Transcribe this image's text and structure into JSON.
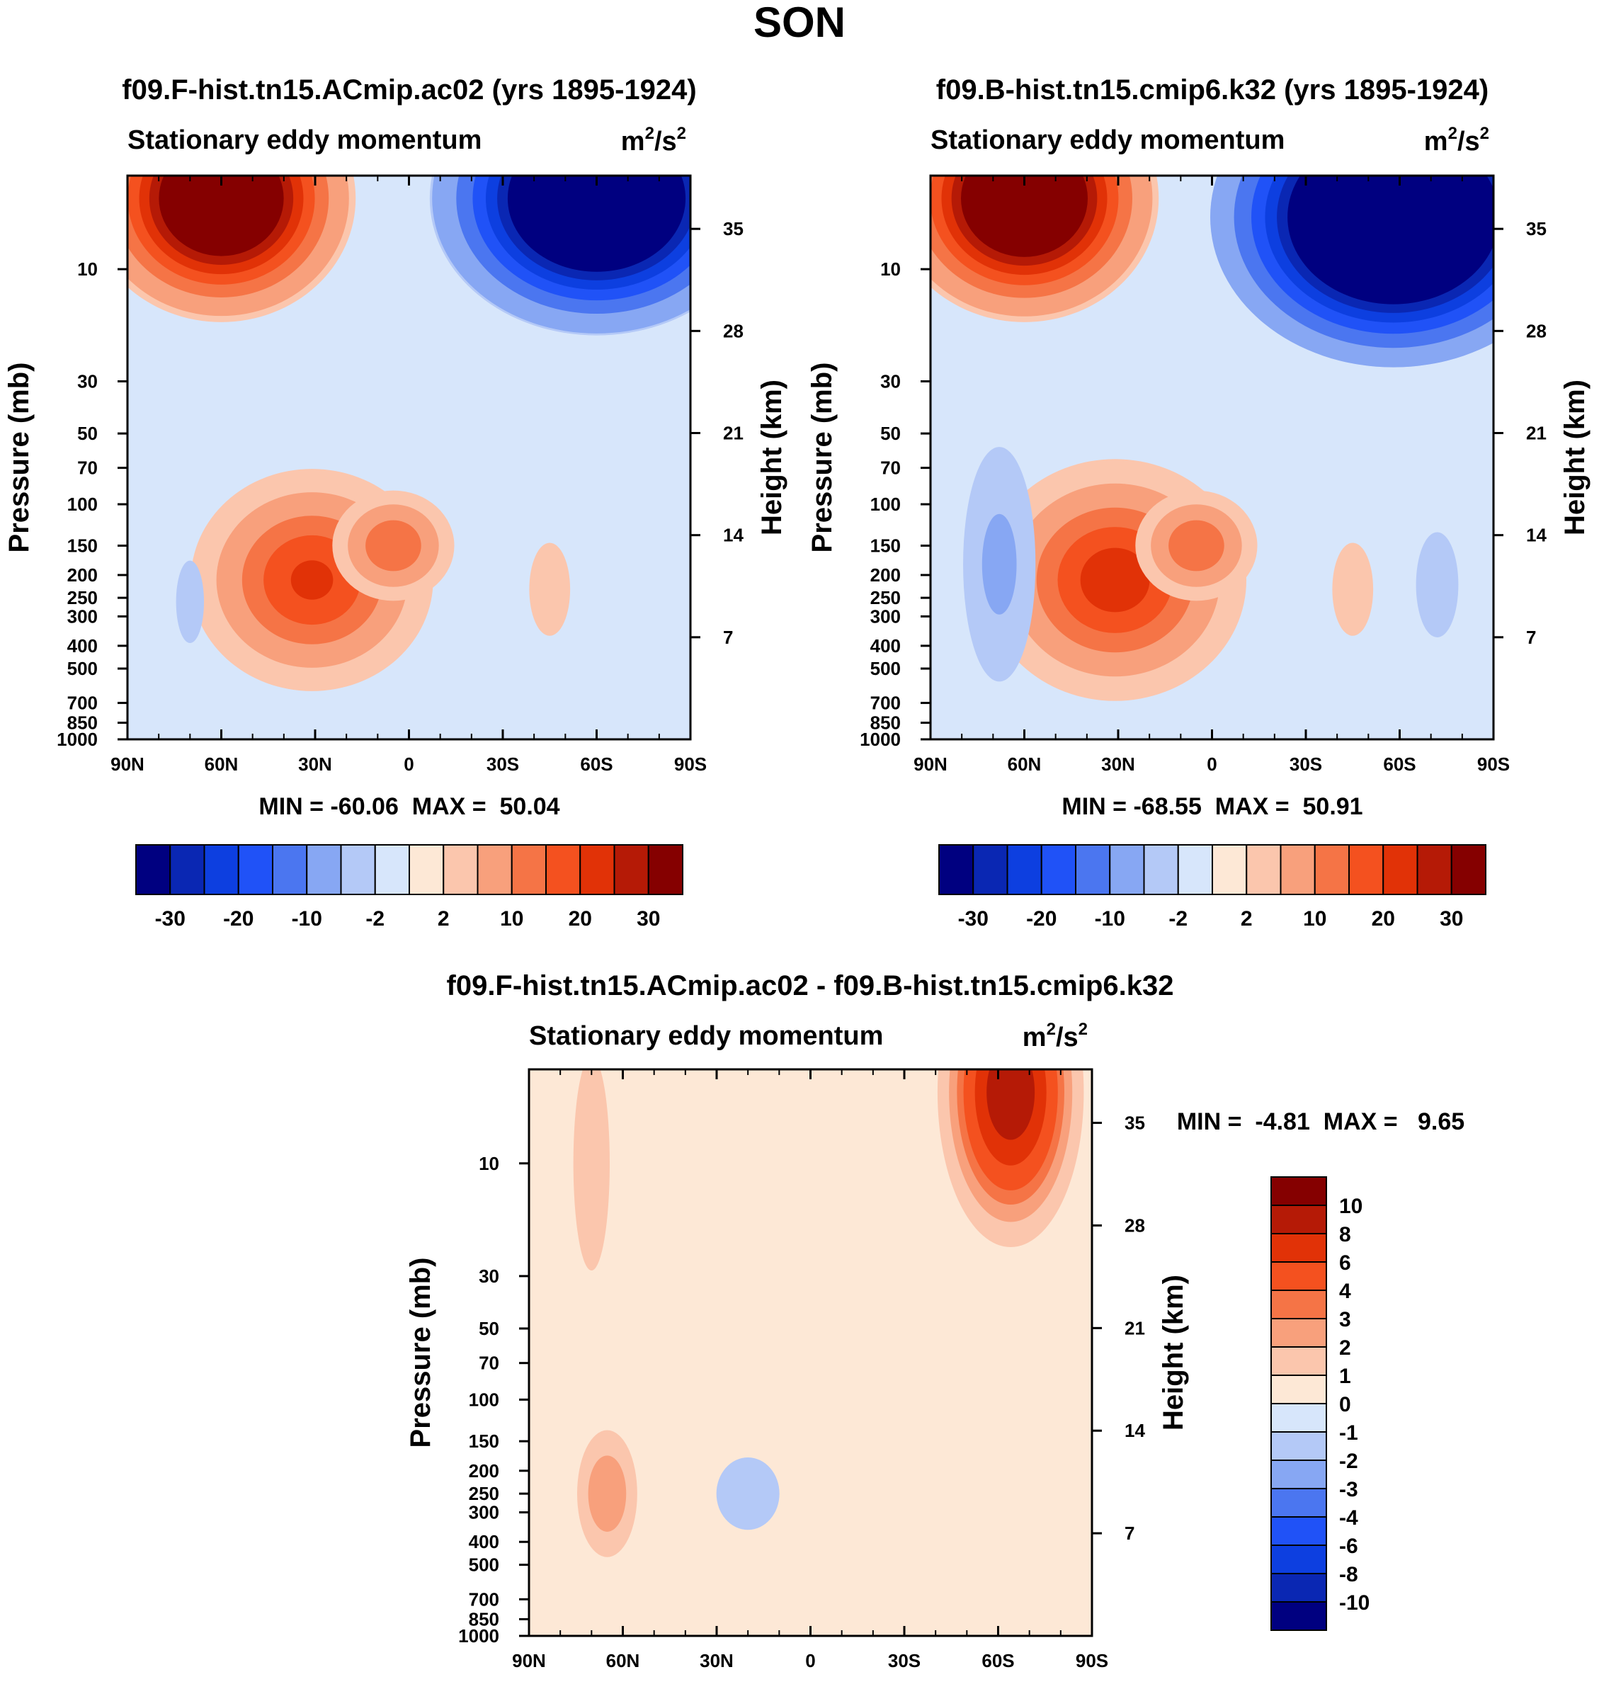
{
  "title": "SON",
  "colors": {
    "neg": [
      "#000080",
      "#0a27b3",
      "#0d3fe0",
      "#2052f7",
      "#4b76f0",
      "#87a7f3",
      "#b4c9f7",
      "#d7e6fb"
    ],
    "pos": [
      "#fde8d6",
      "#fbc6ad",
      "#f8a07c",
      "#f57446",
      "#f4511f",
      "#e13207",
      "#b51a06",
      "#850000"
    ],
    "frame": "#000000"
  },
  "chart_data": [
    {
      "id": "panel-a",
      "type": "heatmap",
      "title": "f09.F-hist.tn15.ACmip.ac02 (yrs 1895-1924)",
      "subtitle": "Stationary eddy momentum",
      "units": "m²/s²",
      "units_base": "m",
      "units_exp1": "2",
      "units_mid": "/s",
      "units_exp2": "2",
      "xlabel": "",
      "ylabel": "Pressure (mb)",
      "ylabel_right": "Height (km)",
      "x_ticks": [
        "90N",
        "60N",
        "30N",
        "0",
        "30S",
        "60S",
        "90S"
      ],
      "x_values": [
        90,
        60,
        30,
        0,
        -30,
        -60,
        -90
      ],
      "y_ticks": [
        "10",
        "30",
        "50",
        "70",
        "100",
        "150",
        "200",
        "250",
        "300",
        "400",
        "500",
        "700",
        "850",
        "1000"
      ],
      "y_values": [
        10,
        30,
        50,
        70,
        100,
        150,
        200,
        250,
        300,
        400,
        500,
        700,
        850,
        1000
      ],
      "y_ticks_right": [
        "35",
        "28",
        "21",
        "14",
        "7"
      ],
      "y_values_right": [
        35,
        28,
        21,
        14,
        7
      ],
      "ylim": [
        1000,
        4
      ],
      "xlim": [
        90,
        -90
      ],
      "min": -60.06,
      "max": 50.04,
      "stats_text": "MIN = -60.06  MAX =  50.04",
      "levels": [
        -30,
        -25,
        -20,
        -15,
        -10,
        -5,
        -2,
        0,
        2,
        5,
        10,
        15,
        20,
        25,
        30
      ],
      "features": [
        {
          "lat": 60,
          "p": 5,
          "value": 50.04,
          "lat_width": 16,
          "lev_width": 0.45
        },
        {
          "lat": -60,
          "p": 5,
          "value": -60.06,
          "lat_width": 20,
          "lev_width": 0.5
        },
        {
          "lat": 31,
          "p": 210,
          "value": 21,
          "lat_width": 15,
          "lev_width": 0.42
        },
        {
          "lat": 5,
          "p": 150,
          "value": 14,
          "lat_width": 8,
          "lev_width": 0.22
        },
        {
          "lat": -45,
          "p": 230,
          "value": 3,
          "lat_width": 5,
          "lev_width": 0.4
        },
        {
          "lat": 70,
          "p": 260,
          "value": -3,
          "lat_width": 3,
          "lev_width": 0.35
        }
      ]
    },
    {
      "id": "panel-b",
      "type": "heatmap",
      "title": "f09.B-hist.tn15.cmip6.k32 (yrs 1895-1924)",
      "subtitle": "Stationary eddy momentum",
      "units": "m²/s²",
      "units_base": "m",
      "units_exp1": "2",
      "units_mid": "/s",
      "units_exp2": "2",
      "xlabel": "",
      "ylabel": "Pressure (mb)",
      "ylabel_right": "Height (km)",
      "x_ticks": [
        "90N",
        "60N",
        "30N",
        "0",
        "30S",
        "60S",
        "90S"
      ],
      "x_values": [
        90,
        60,
        30,
        0,
        -30,
        -60,
        -90
      ],
      "y_ticks": [
        "10",
        "30",
        "50",
        "70",
        "100",
        "150",
        "200",
        "250",
        "300",
        "400",
        "500",
        "700",
        "850",
        "1000"
      ],
      "y_values": [
        10,
        30,
        50,
        70,
        100,
        150,
        200,
        250,
        300,
        400,
        500,
        700,
        850,
        1000
      ],
      "y_ticks_right": [
        "35",
        "28",
        "21",
        "14",
        "7"
      ],
      "y_values_right": [
        35,
        28,
        21,
        14,
        7
      ],
      "ylim": [
        1000,
        4
      ],
      "xlim": [
        90,
        -90
      ],
      "min": -68.55,
      "max": 50.91,
      "stats_text": "MIN = -68.55  MAX =  50.91",
      "levels": [
        -30,
        -25,
        -20,
        -15,
        -10,
        -5,
        -2,
        0,
        2,
        5,
        10,
        15,
        20,
        25,
        30
      ],
      "features": [
        {
          "lat": 60,
          "p": 5,
          "value": 50.91,
          "lat_width": 16,
          "lev_width": 0.45
        },
        {
          "lat": -58,
          "p": 6,
          "value": -68.55,
          "lat_width": 22,
          "lev_width": 0.55
        },
        {
          "lat": 31,
          "p": 210,
          "value": 23,
          "lat_width": 16,
          "lev_width": 0.45
        },
        {
          "lat": 5,
          "p": 150,
          "value": 14,
          "lat_width": 8,
          "lev_width": 0.22
        },
        {
          "lat": 68,
          "p": 180,
          "value": -6,
          "lat_width": 6,
          "lev_width": 0.65
        },
        {
          "lat": -45,
          "p": 230,
          "value": 3,
          "lat_width": 5,
          "lev_width": 0.4
        },
        {
          "lat": -72,
          "p": 220,
          "value": -4,
          "lat_width": 4,
          "lev_width": 0.35
        }
      ]
    },
    {
      "id": "panel-c",
      "type": "heatmap",
      "title": "f09.F-hist.tn15.ACmip.ac02 - f09.B-hist.tn15.cmip6.k32",
      "subtitle": "Stationary eddy momentum",
      "units": "m²/s²",
      "units_base": "m",
      "units_exp1": "2",
      "units_mid": "/s",
      "units_exp2": "2",
      "xlabel": "",
      "ylabel": "Pressure (mb)",
      "ylabel_right": "Height (km)",
      "x_ticks": [
        "90N",
        "60N",
        "30N",
        "0",
        "30S",
        "60S",
        "90S"
      ],
      "x_values": [
        90,
        60,
        30,
        0,
        -30,
        -60,
        -90
      ],
      "y_ticks": [
        "10",
        "30",
        "50",
        "70",
        "100",
        "150",
        "200",
        "250",
        "300",
        "400",
        "500",
        "700",
        "850",
        "1000"
      ],
      "y_values": [
        10,
        30,
        50,
        70,
        100,
        150,
        200,
        250,
        300,
        400,
        500,
        700,
        850,
        1000
      ],
      "y_ticks_right": [
        "35",
        "28",
        "21",
        "14",
        "7"
      ],
      "y_values_right": [
        35,
        28,
        21,
        14,
        7
      ],
      "ylim": [
        1000,
        4
      ],
      "xlim": [
        90,
        -90
      ],
      "min": -4.81,
      "max": 9.65,
      "stats_text": "MIN =  -4.81  MAX =   9.65",
      "levels": [
        -10,
        -8,
        -6,
        -4,
        -3,
        -2,
        -1,
        0,
        1,
        2,
        3,
        4,
        6,
        8,
        10
      ],
      "features": [
        {
          "lat": -64,
          "p": 5,
          "value": 9.65,
          "lat_width": 9,
          "lev_width": 0.6
        },
        {
          "lat": 65,
          "p": 250,
          "value": 2.8,
          "lat_width": 5,
          "lev_width": 0.35
        },
        {
          "lat": 70,
          "p": 10,
          "value": 1.6,
          "lat_width": 4,
          "lev_width": 0.9
        },
        {
          "lat": 20,
          "p": 250,
          "value": -1.8,
          "lat_width": 7,
          "lev_width": 0.25
        },
        {
          "lat": 5,
          "p": 120,
          "value": -0.8,
          "lat_width": 18,
          "lev_width": 0.6
        }
      ]
    }
  ],
  "colorbars": [
    {
      "id": "cb-a",
      "labels": [
        "-30",
        "-20",
        "-10",
        "-2",
        "2",
        "10",
        "20",
        "30"
      ]
    },
    {
      "id": "cb-b",
      "labels": [
        "-30",
        "-20",
        "-10",
        "-2",
        "2",
        "10",
        "20",
        "30"
      ]
    },
    {
      "id": "cb-c",
      "labels": [
        "10",
        "8",
        "6",
        "4",
        "3",
        "2",
        "1",
        "0",
        "-1",
        "-2",
        "-3",
        "-4",
        "-6",
        "-8",
        "-10"
      ]
    }
  ]
}
